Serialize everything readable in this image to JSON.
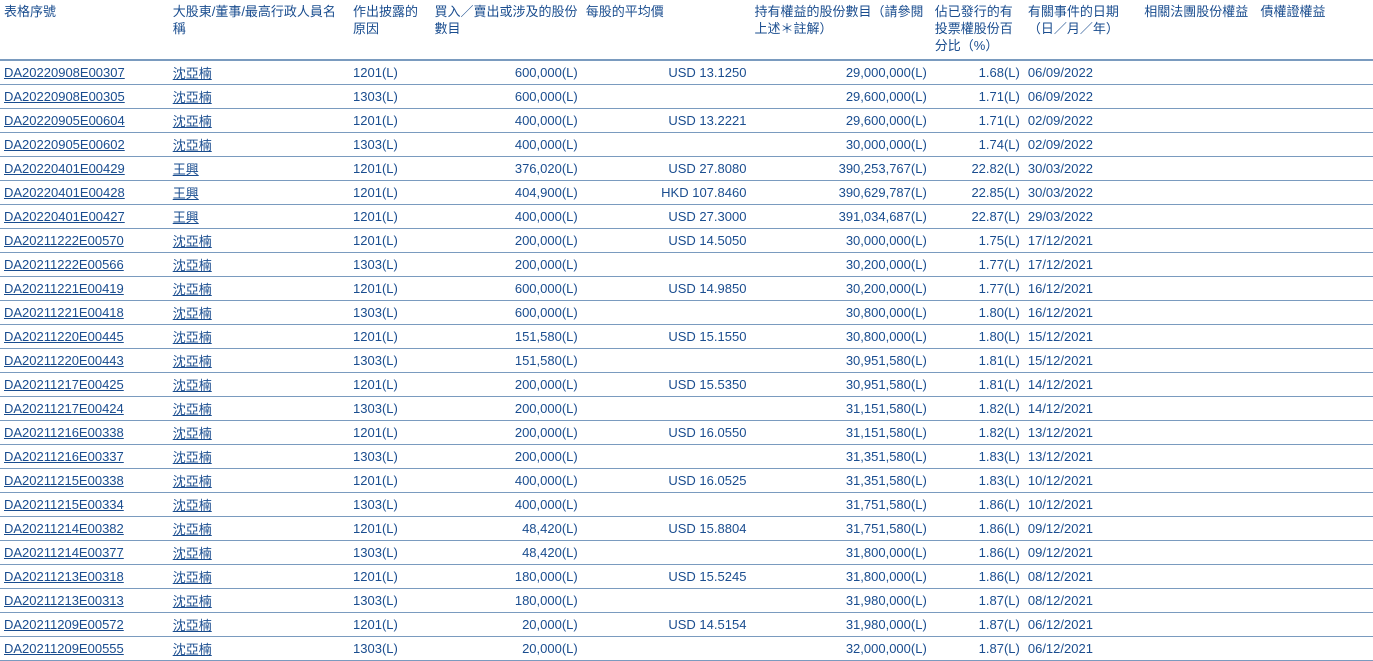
{
  "table": {
    "columns": [
      {
        "key": "form_no",
        "label": "表格序號",
        "class": "col-form"
      },
      {
        "key": "name",
        "label": "大股東/董事/最高行政人員名稱",
        "class": "col-name"
      },
      {
        "key": "reason",
        "label": "作出披露的原因",
        "class": "col-reason"
      },
      {
        "key": "shares",
        "label": "買入／賣出或涉及的股份數目",
        "class": "col-shares"
      },
      {
        "key": "price",
        "label": "每股的平均價",
        "class": "col-price"
      },
      {
        "key": "holding",
        "label": "持有權益的股份數目（請參閱上述＊註解）",
        "class": "col-holding"
      },
      {
        "key": "percent",
        "label": "佔已發行的有投票權股份百分比（%）",
        "class": "col-percent"
      },
      {
        "key": "date",
        "label": "有關事件的日期（日／月／年）",
        "class": "col-date"
      },
      {
        "key": "related",
        "label": "相關法團股份權益",
        "class": "col-related"
      },
      {
        "key": "debt",
        "label": "債權證權益",
        "class": "col-debt"
      }
    ],
    "rows": [
      {
        "form_no": "DA20220908E00307",
        "name": "沈亞楠",
        "reason": "1201(L)",
        "shares": "600,000(L)",
        "price": "USD 13.1250",
        "holding": "29,000,000(L)",
        "percent": "1.68(L)",
        "date": "06/09/2022",
        "related": "",
        "debt": ""
      },
      {
        "form_no": "DA20220908E00305",
        "name": "沈亞楠",
        "reason": "1303(L)",
        "shares": "600,000(L)",
        "price": "",
        "holding": "29,600,000(L)",
        "percent": "1.71(L)",
        "date": "06/09/2022",
        "related": "",
        "debt": ""
      },
      {
        "form_no": "DA20220905E00604",
        "name": "沈亞楠",
        "reason": "1201(L)",
        "shares": "400,000(L)",
        "price": "USD 13.2221",
        "holding": "29,600,000(L)",
        "percent": "1.71(L)",
        "date": "02/09/2022",
        "related": "",
        "debt": ""
      },
      {
        "form_no": "DA20220905E00602",
        "name": "沈亞楠",
        "reason": "1303(L)",
        "shares": "400,000(L)",
        "price": "",
        "holding": "30,000,000(L)",
        "percent": "1.74(L)",
        "date": "02/09/2022",
        "related": "",
        "debt": ""
      },
      {
        "form_no": "DA20220401E00429",
        "name": "王興",
        "reason": "1201(L)",
        "shares": "376,020(L)",
        "price": "USD 27.8080",
        "holding": "390,253,767(L)",
        "percent": "22.82(L)",
        "date": "30/03/2022",
        "related": "",
        "debt": ""
      },
      {
        "form_no": "DA20220401E00428",
        "name": "王興",
        "reason": "1201(L)",
        "shares": "404,900(L)",
        "price": "HKD 107.8460",
        "holding": "390,629,787(L)",
        "percent": "22.85(L)",
        "date": "30/03/2022",
        "related": "",
        "debt": ""
      },
      {
        "form_no": "DA20220401E00427",
        "name": "王興",
        "reason": "1201(L)",
        "shares": "400,000(L)",
        "price": "USD 27.3000",
        "holding": "391,034,687(L)",
        "percent": "22.87(L)",
        "date": "29/03/2022",
        "related": "",
        "debt": ""
      },
      {
        "form_no": "DA20211222E00570",
        "name": "沈亞楠",
        "reason": "1201(L)",
        "shares": "200,000(L)",
        "price": "USD 14.5050",
        "holding": "30,000,000(L)",
        "percent": "1.75(L)",
        "date": "17/12/2021",
        "related": "",
        "debt": ""
      },
      {
        "form_no": "DA20211222E00566",
        "name": "沈亞楠",
        "reason": "1303(L)",
        "shares": "200,000(L)",
        "price": "",
        "holding": "30,200,000(L)",
        "percent": "1.77(L)",
        "date": "17/12/2021",
        "related": "",
        "debt": ""
      },
      {
        "form_no": "DA20211221E00419",
        "name": "沈亞楠",
        "reason": "1201(L)",
        "shares": "600,000(L)",
        "price": "USD 14.9850",
        "holding": "30,200,000(L)",
        "percent": "1.77(L)",
        "date": "16/12/2021",
        "related": "",
        "debt": ""
      },
      {
        "form_no": "DA20211221E00418",
        "name": "沈亞楠",
        "reason": "1303(L)",
        "shares": "600,000(L)",
        "price": "",
        "holding": "30,800,000(L)",
        "percent": "1.80(L)",
        "date": "16/12/2021",
        "related": "",
        "debt": ""
      },
      {
        "form_no": "DA20211220E00445",
        "name": "沈亞楠",
        "reason": "1201(L)",
        "shares": "151,580(L)",
        "price": "USD 15.1550",
        "holding": "30,800,000(L)",
        "percent": "1.80(L)",
        "date": "15/12/2021",
        "related": "",
        "debt": ""
      },
      {
        "form_no": "DA20211220E00443",
        "name": "沈亞楠",
        "reason": "1303(L)",
        "shares": "151,580(L)",
        "price": "",
        "holding": "30,951,580(L)",
        "percent": "1.81(L)",
        "date": "15/12/2021",
        "related": "",
        "debt": ""
      },
      {
        "form_no": "DA20211217E00425",
        "name": "沈亞楠",
        "reason": "1201(L)",
        "shares": "200,000(L)",
        "price": "USD 15.5350",
        "holding": "30,951,580(L)",
        "percent": "1.81(L)",
        "date": "14/12/2021",
        "related": "",
        "debt": ""
      },
      {
        "form_no": "DA20211217E00424",
        "name": "沈亞楠",
        "reason": "1303(L)",
        "shares": "200,000(L)",
        "price": "",
        "holding": "31,151,580(L)",
        "percent": "1.82(L)",
        "date": "14/12/2021",
        "related": "",
        "debt": ""
      },
      {
        "form_no": "DA20211216E00338",
        "name": "沈亞楠",
        "reason": "1201(L)",
        "shares": "200,000(L)",
        "price": "USD 16.0550",
        "holding": "31,151,580(L)",
        "percent": "1.82(L)",
        "date": "13/12/2021",
        "related": "",
        "debt": ""
      },
      {
        "form_no": "DA20211216E00337",
        "name": "沈亞楠",
        "reason": "1303(L)",
        "shares": "200,000(L)",
        "price": "",
        "holding": "31,351,580(L)",
        "percent": "1.83(L)",
        "date": "13/12/2021",
        "related": "",
        "debt": ""
      },
      {
        "form_no": "DA20211215E00338",
        "name": "沈亞楠",
        "reason": "1201(L)",
        "shares": "400,000(L)",
        "price": "USD 16.0525",
        "holding": "31,351,580(L)",
        "percent": "1.83(L)",
        "date": "10/12/2021",
        "related": "",
        "debt": ""
      },
      {
        "form_no": "DA20211215E00334",
        "name": "沈亞楠",
        "reason": "1303(L)",
        "shares": "400,000(L)",
        "price": "",
        "holding": "31,751,580(L)",
        "percent": "1.86(L)",
        "date": "10/12/2021",
        "related": "",
        "debt": ""
      },
      {
        "form_no": "DA20211214E00382",
        "name": "沈亞楠",
        "reason": "1201(L)",
        "shares": "48,420(L)",
        "price": "USD 15.8804",
        "holding": "31,751,580(L)",
        "percent": "1.86(L)",
        "date": "09/12/2021",
        "related": "",
        "debt": ""
      },
      {
        "form_no": "DA20211214E00377",
        "name": "沈亞楠",
        "reason": "1303(L)",
        "shares": "48,420(L)",
        "price": "",
        "holding": "31,800,000(L)",
        "percent": "1.86(L)",
        "date": "09/12/2021",
        "related": "",
        "debt": ""
      },
      {
        "form_no": "DA20211213E00318",
        "name": "沈亞楠",
        "reason": "1201(L)",
        "shares": "180,000(L)",
        "price": "USD 15.5245",
        "holding": "31,800,000(L)",
        "percent": "1.86(L)",
        "date": "08/12/2021",
        "related": "",
        "debt": ""
      },
      {
        "form_no": "DA20211213E00313",
        "name": "沈亞楠",
        "reason": "1303(L)",
        "shares": "180,000(L)",
        "price": "",
        "holding": "31,980,000(L)",
        "percent": "1.87(L)",
        "date": "08/12/2021",
        "related": "",
        "debt": ""
      },
      {
        "form_no": "DA20211209E00572",
        "name": "沈亞楠",
        "reason": "1201(L)",
        "shares": "20,000(L)",
        "price": "USD 14.5154",
        "holding": "31,980,000(L)",
        "percent": "1.87(L)",
        "date": "06/12/2021",
        "related": "",
        "debt": ""
      },
      {
        "form_no": "DA20211209E00555",
        "name": "沈亞楠",
        "reason": "1303(L)",
        "shares": "20,000(L)",
        "price": "",
        "holding": "32,000,000(L)",
        "percent": "1.87(L)",
        "date": "06/12/2021",
        "related": "",
        "debt": ""
      }
    ]
  },
  "colors": {
    "text": "#1a4d8f",
    "border": "#7a9bbf",
    "background": "#ffffff"
  }
}
